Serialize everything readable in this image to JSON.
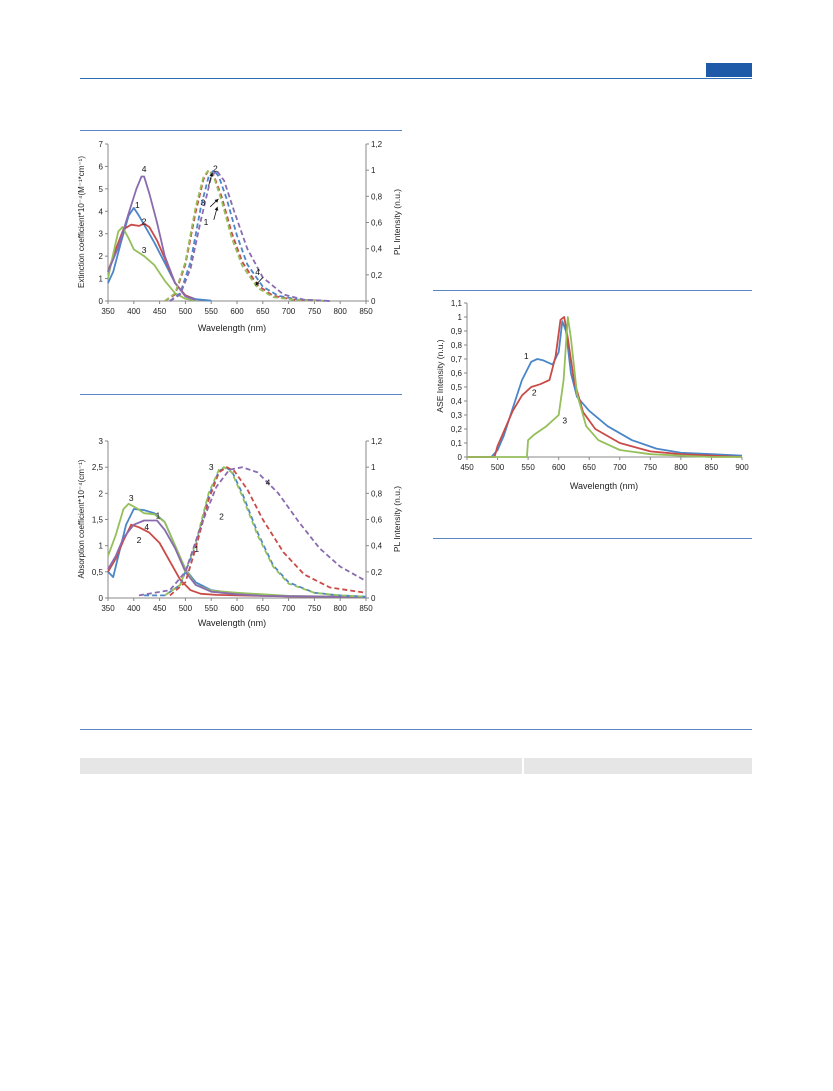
{
  "chart_data": [
    {
      "type": "line",
      "xlabel": "Wavelength (nm)",
      "ylabel": "Extinction coefficient*10⁻⁴(M⁻¹*cm⁻¹)",
      "y2label": "PL Intensity (n.u.)",
      "xlim": [
        350,
        850
      ],
      "ylim": [
        0,
        7
      ],
      "y2lim": [
        0,
        1.2
      ],
      "xticks": [
        "350",
        "400",
        "450",
        "500",
        "550",
        "600",
        "650",
        "700",
        "750",
        "800",
        "850"
      ],
      "yticks": [
        "0",
        "1",
        "2",
        "3",
        "4",
        "5",
        "6",
        "7"
      ],
      "y2ticks": [
        "0",
        "0,2",
        "0,4",
        "0,6",
        "0,8",
        "1",
        "1,2"
      ],
      "series": [
        {
          "name": "1",
          "color": "#4a86c8",
          "style": "solid",
          "axis": "left",
          "x": [
            350,
            360,
            375,
            390,
            400,
            410,
            420,
            440,
            460,
            480,
            500,
            520,
            550
          ],
          "y": [
            0.8,
            1.3,
            2.6,
            3.8,
            4.15,
            3.8,
            3.4,
            2.6,
            1.7,
            0.8,
            0.25,
            0.08,
            0.02
          ]
        },
        {
          "name": "2",
          "color": "#c94b47",
          "style": "solid",
          "axis": "left",
          "x": [
            350,
            365,
            380,
            395,
            410,
            420,
            430,
            445,
            460,
            480,
            500,
            520
          ],
          "y": [
            1.3,
            2.3,
            3.2,
            3.4,
            3.35,
            3.45,
            3.3,
            2.7,
            1.9,
            0.8,
            0.25,
            0.05
          ]
        },
        {
          "name": "3",
          "color": "#95bf5b",
          "style": "solid",
          "axis": "left",
          "x": [
            350,
            360,
            370,
            378,
            390,
            400,
            420,
            440,
            460,
            480,
            500,
            520
          ],
          "y": [
            1.0,
            2.1,
            3.1,
            3.3,
            2.8,
            2.3,
            2.0,
            1.6,
            0.9,
            0.35,
            0.1,
            0.02
          ]
        },
        {
          "name": "4",
          "color": "#8a6bb0",
          "style": "solid",
          "axis": "left",
          "x": [
            350,
            370,
            390,
            405,
            415,
            420,
            430,
            445,
            460,
            480,
            500,
            520
          ],
          "y": [
            1.3,
            2.4,
            3.9,
            5.0,
            5.55,
            5.55,
            4.8,
            3.5,
            2.0,
            0.8,
            0.2,
            0.05
          ]
        },
        {
          "name": "1",
          "color": "#4a86c8",
          "style": "dashed",
          "axis": "right",
          "x": [
            470,
            490,
            510,
            530,
            545,
            555,
            565,
            580,
            600,
            620,
            650,
            680,
            720,
            780
          ],
          "y": [
            0.0,
            0.06,
            0.3,
            0.72,
            0.95,
            1.0,
            0.95,
            0.78,
            0.5,
            0.28,
            0.11,
            0.04,
            0.01,
            0.0
          ]
        },
        {
          "name": "2",
          "color": "#c94b47",
          "style": "dashed",
          "axis": "right",
          "x": [
            460,
            480,
            500,
            520,
            535,
            545,
            555,
            570,
            590,
            610,
            640,
            670,
            710,
            770
          ],
          "y": [
            0.0,
            0.05,
            0.28,
            0.68,
            0.93,
            1.0,
            0.96,
            0.8,
            0.52,
            0.3,
            0.12,
            0.04,
            0.01,
            0.0
          ]
        },
        {
          "name": "3",
          "color": "#95bf5b",
          "style": "dashed",
          "axis": "right",
          "x": [
            460,
            480,
            500,
            520,
            535,
            545,
            555,
            570,
            590,
            610,
            640,
            670,
            710,
            770
          ],
          "y": [
            0.0,
            0.06,
            0.3,
            0.72,
            0.95,
            1.0,
            0.95,
            0.77,
            0.48,
            0.27,
            0.1,
            0.03,
            0.01,
            0.0
          ]
        },
        {
          "name": "4",
          "color": "#8a6bb0",
          "style": "dashed",
          "axis": "right",
          "x": [
            470,
            490,
            510,
            530,
            550,
            560,
            575,
            595,
            620,
            650,
            690,
            730,
            780
          ],
          "y": [
            0.0,
            0.05,
            0.25,
            0.62,
            0.95,
            1.0,
            0.92,
            0.68,
            0.4,
            0.18,
            0.05,
            0.01,
            0.0
          ]
        }
      ],
      "annotations": [
        "4",
        "1",
        "2",
        "3",
        "2",
        "3",
        "1",
        "4"
      ]
    },
    {
      "type": "line",
      "xlabel": "Wavelength (nm)",
      "ylabel": "Absorption coefficient*10⁻⁴(cm⁻¹)",
      "y2label": "PL Intensity (n.u.)",
      "xlim": [
        350,
        850
      ],
      "ylim": [
        0,
        3
      ],
      "y2lim": [
        0,
        1.2
      ],
      "xticks": [
        "350",
        "400",
        "450",
        "500",
        "550",
        "600",
        "650",
        "700",
        "750",
        "800",
        "850"
      ],
      "yticks": [
        "0",
        "0,5",
        "1",
        "1,5",
        "2",
        "2,5",
        "3"
      ],
      "y2ticks": [
        "0",
        "0,2",
        "0,4",
        "0,6",
        "0,8",
        "1",
        "1,2"
      ],
      "series": [
        {
          "name": "1",
          "color": "#4a86c8",
          "style": "solid",
          "axis": "left",
          "x": [
            350,
            360,
            370,
            385,
            400,
            420,
            440,
            460,
            480,
            500,
            520,
            550,
            600,
            650,
            700,
            850
          ],
          "y": [
            0.5,
            0.4,
            0.8,
            1.4,
            1.7,
            1.68,
            1.62,
            1.45,
            1.0,
            0.55,
            0.3,
            0.15,
            0.08,
            0.05,
            0.03,
            0.02
          ]
        },
        {
          "name": "2",
          "color": "#c94b47",
          "style": "solid",
          "axis": "left",
          "x": [
            350,
            365,
            380,
            395,
            410,
            430,
            450,
            470,
            490,
            510,
            530,
            560,
            600,
            700,
            850
          ],
          "y": [
            0.5,
            0.75,
            1.1,
            1.4,
            1.35,
            1.25,
            1.05,
            0.7,
            0.35,
            0.15,
            0.08,
            0.06,
            0.05,
            0.03,
            0.02
          ]
        },
        {
          "name": "3",
          "color": "#95bf5b",
          "style": "solid",
          "axis": "left",
          "x": [
            350,
            365,
            380,
            390,
            405,
            420,
            440,
            460,
            480,
            500,
            520,
            550,
            600,
            650,
            700,
            850
          ],
          "y": [
            0.8,
            1.2,
            1.7,
            1.8,
            1.72,
            1.62,
            1.6,
            1.45,
            1.0,
            0.55,
            0.25,
            0.14,
            0.1,
            0.07,
            0.04,
            0.02
          ]
        },
        {
          "name": "4",
          "color": "#8a6bb0",
          "style": "solid",
          "axis": "left",
          "x": [
            350,
            365,
            380,
            400,
            420,
            445,
            460,
            480,
            500,
            520,
            550,
            600,
            650,
            850
          ],
          "y": [
            0.55,
            0.8,
            1.15,
            1.4,
            1.48,
            1.48,
            1.3,
            0.95,
            0.5,
            0.25,
            0.12,
            0.07,
            0.04,
            0.02
          ]
        },
        {
          "name": "1",
          "color": "#4a86c8",
          "style": "dashed",
          "axis": "right",
          "x": [
            420,
            460,
            490,
            520,
            545,
            565,
            578,
            590,
            610,
            640,
            670,
            700,
            750,
            800,
            850
          ],
          "y": [
            0.02,
            0.02,
            0.1,
            0.4,
            0.78,
            0.97,
            1.0,
            0.97,
            0.8,
            0.5,
            0.25,
            0.12,
            0.04,
            0.02,
            0.01
          ]
        },
        {
          "name": "2",
          "color": "#c94b47",
          "style": "dashed",
          "axis": "right",
          "x": [
            470,
            500,
            520,
            545,
            565,
            580,
            595,
            620,
            650,
            690,
            730,
            780,
            850
          ],
          "y": [
            0.02,
            0.12,
            0.38,
            0.75,
            0.96,
            1.0,
            0.97,
            0.83,
            0.6,
            0.35,
            0.18,
            0.08,
            0.04
          ]
        },
        {
          "name": "3",
          "color": "#95bf5b",
          "style": "dashed",
          "axis": "right",
          "x": [
            460,
            490,
            520,
            545,
            565,
            575,
            590,
            610,
            640,
            670,
            700,
            750,
            800,
            850
          ],
          "y": [
            0.02,
            0.1,
            0.42,
            0.8,
            0.98,
            1.0,
            0.96,
            0.78,
            0.48,
            0.24,
            0.11,
            0.04,
            0.02,
            0.01
          ]
        },
        {
          "name": "4",
          "color": "#8a6bb0",
          "style": "dashed",
          "axis": "right",
          "x": [
            410,
            440,
            470,
            500,
            530,
            560,
            585,
            610,
            640,
            680,
            720,
            760,
            800,
            850
          ],
          "y": [
            0.02,
            0.04,
            0.06,
            0.2,
            0.55,
            0.85,
            0.98,
            1.0,
            0.96,
            0.8,
            0.58,
            0.38,
            0.24,
            0.13
          ]
        }
      ],
      "annotations": [
        "3",
        "1",
        "4",
        "2",
        "3",
        "1",
        "2",
        "4"
      ]
    },
    {
      "type": "line",
      "xlabel": "Wavelength (nm)",
      "ylabel": "ASE Intensity (n.u.)",
      "xlim": [
        450,
        900
      ],
      "ylim": [
        0,
        1.1
      ],
      "xticks": [
        "450",
        "500",
        "550",
        "600",
        "650",
        "700",
        "750",
        "800",
        "850",
        "900"
      ],
      "yticks": [
        "0",
        "0,1",
        "0,2",
        "0,3",
        "0,4",
        "0,5",
        "0,6",
        "0,7",
        "0,8",
        "0,9",
        "1",
        "1,1"
      ],
      "series": [
        {
          "name": "1",
          "color": "#4a86c8",
          "style": "solid",
          "x": [
            450,
            490,
            500,
            510,
            525,
            540,
            555,
            565,
            575,
            590,
            600,
            606,
            612,
            620,
            630,
            650,
            680,
            720,
            760,
            800,
            850,
            900
          ],
          "y": [
            0.0,
            0.0,
            0.05,
            0.15,
            0.35,
            0.55,
            0.68,
            0.7,
            0.69,
            0.66,
            0.75,
            0.97,
            0.9,
            0.6,
            0.43,
            0.33,
            0.22,
            0.12,
            0.06,
            0.03,
            0.02,
            0.01
          ]
        },
        {
          "name": "2",
          "color": "#c94b47",
          "style": "solid",
          "x": [
            450,
            495,
            500,
            510,
            525,
            540,
            555,
            570,
            585,
            595,
            603,
            609,
            615,
            625,
            640,
            660,
            700,
            750,
            800,
            850,
            900
          ],
          "y": [
            0.0,
            0.0,
            0.08,
            0.18,
            0.33,
            0.44,
            0.5,
            0.52,
            0.55,
            0.72,
            0.98,
            1.0,
            0.85,
            0.55,
            0.32,
            0.2,
            0.1,
            0.04,
            0.02,
            0.01,
            0.0
          ]
        },
        {
          "name": "3",
          "color": "#95bf5b",
          "style": "solid",
          "x": [
            450,
            548,
            550,
            560,
            580,
            600,
            608,
            615,
            620,
            630,
            645,
            665,
            700,
            750,
            800,
            850,
            900
          ],
          "y": [
            0.0,
            0.0,
            0.12,
            0.16,
            0.22,
            0.3,
            0.55,
            1.0,
            0.85,
            0.45,
            0.22,
            0.12,
            0.05,
            0.02,
            0.01,
            0.0,
            0.0
          ]
        }
      ],
      "annotations": [
        "1",
        "2",
        "3"
      ]
    }
  ]
}
